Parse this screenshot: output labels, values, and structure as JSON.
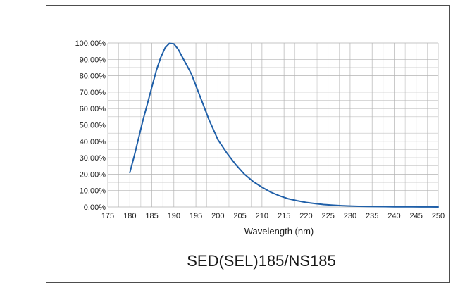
{
  "chart_data": {
    "type": "line",
    "title": "SED(SEL)185/NS185",
    "xlabel": "Wavelength (nm)",
    "ylabel": "",
    "xlim": [
      175,
      250
    ],
    "ylim": [
      0,
      100
    ],
    "x_ticks": [
      "175",
      "180",
      "185",
      "190",
      "195",
      "200",
      "205",
      "210",
      "215",
      "220",
      "225",
      "230",
      "235",
      "240",
      "245",
      "250"
    ],
    "y_ticks": [
      "0.00%",
      "10.00%",
      "20.00%",
      "30.00%",
      "40.00%",
      "50.00%",
      "60.00%",
      "70.00%",
      "80.00%",
      "90.00%",
      "100.00%"
    ],
    "grid": true,
    "line_color": "#1f5fa8",
    "grid_color": "#b3b3b3",
    "series": [
      {
        "x": [
          180,
          181,
          182,
          183,
          184,
          185,
          186,
          187,
          188,
          189,
          190,
          191,
          192,
          193,
          194,
          195,
          196,
          197,
          198,
          199,
          200,
          202,
          204,
          206,
          208,
          210,
          212,
          214,
          216,
          218,
          220,
          222,
          224,
          226,
          228,
          230,
          232,
          234,
          236,
          238,
          240,
          242,
          244,
          246,
          248,
          250
        ],
        "y": [
          21,
          31,
          42,
          53,
          63,
          73,
          83,
          91,
          97,
          99.8,
          99.5,
          96,
          91,
          86,
          81,
          74,
          67,
          60,
          53,
          47,
          41,
          33,
          26,
          20,
          15.5,
          12,
          9,
          6.8,
          5,
          3.8,
          2.8,
          2.1,
          1.5,
          1.1,
          0.8,
          0.6,
          0.45,
          0.35,
          0.25,
          0.2,
          0.15,
          0.1,
          0.08,
          0.05,
          0.03,
          0.02
        ]
      }
    ]
  }
}
